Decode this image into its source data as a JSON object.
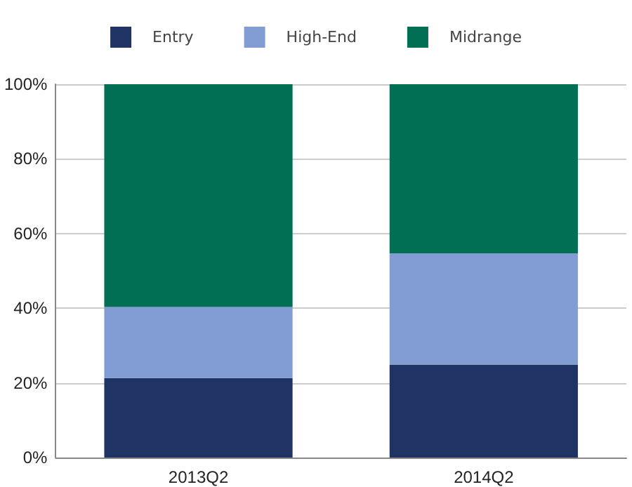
{
  "chart_data": {
    "type": "bar",
    "stacked": true,
    "categories": [
      "2013Q2",
      "2014Q2"
    ],
    "series": [
      {
        "name": "Entry",
        "color": "#1f3364",
        "values": [
          21.3,
          24.9
        ]
      },
      {
        "name": "High-End",
        "color": "#829dd3",
        "values": [
          19.0,
          29.8
        ]
      },
      {
        "name": "Midrange",
        "color": "#006f53",
        "values": [
          59.7,
          45.3
        ]
      }
    ],
    "ylim": [
      0,
      100
    ],
    "yticks": [
      {
        "value": 0,
        "label": "0%"
      },
      {
        "value": 20,
        "label": "20%"
      },
      {
        "value": 40,
        "label": "40%"
      },
      {
        "value": 60,
        "label": "60%"
      },
      {
        "value": 80,
        "label": "80%"
      },
      {
        "value": 100,
        "label": "100%"
      }
    ],
    "grid": "y",
    "legend": "top"
  }
}
